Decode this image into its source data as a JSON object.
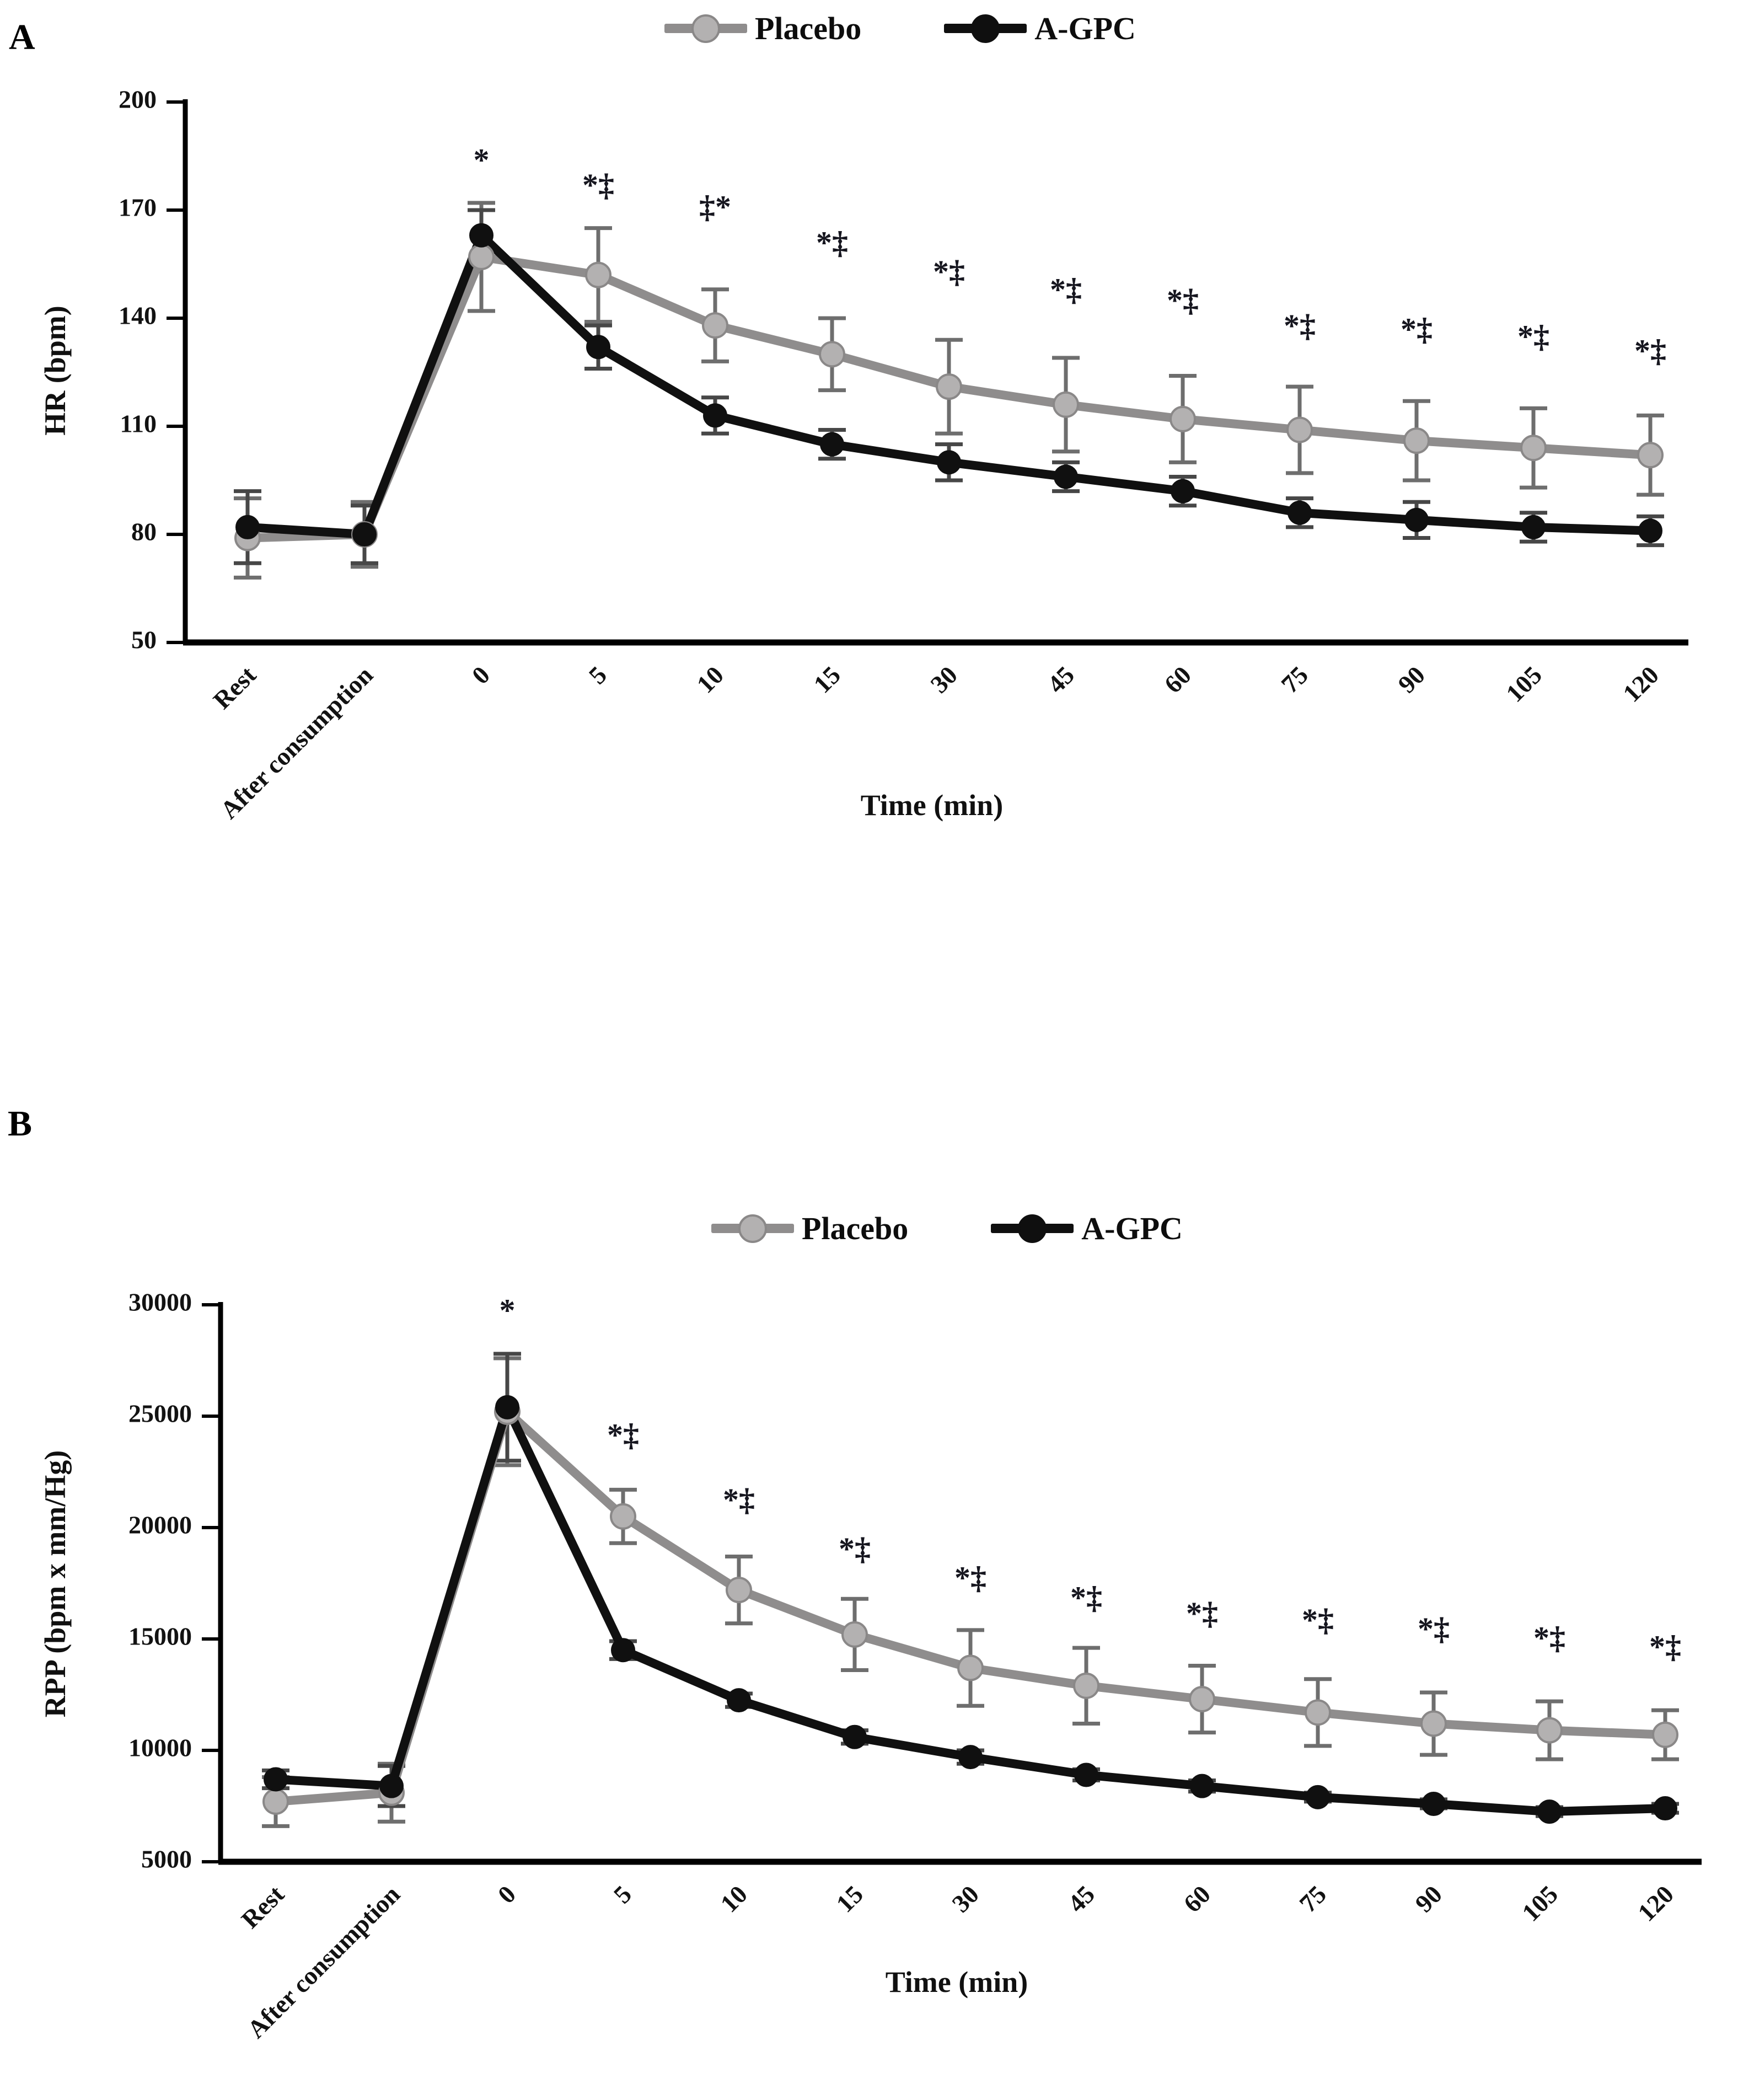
{
  "chart_data": [
    {
      "type": "line",
      "panel_label": "A",
      "xlabel": "Time (min)",
      "ylabel": "HR (bpm)",
      "categories": [
        "Rest",
        "After consumption",
        "0",
        "5",
        "10",
        "15",
        "30",
        "45",
        "60",
        "75",
        "90",
        "105",
        "120"
      ],
      "ylim": [
        50,
        200
      ],
      "yticks": [
        50,
        80,
        110,
        140,
        170,
        200
      ],
      "grid": false,
      "legend_position": "top-center",
      "series": [
        {
          "name": "Placebo",
          "color": "#8f8d8d",
          "marker_fill": "#b3b1b1",
          "marker_stroke": "#8a8888",
          "error_color": "#6e6e6e",
          "values": [
            79,
            80,
            157,
            152,
            138,
            130,
            121,
            116,
            112,
            109,
            106,
            104,
            102
          ],
          "errors": [
            11,
            9,
            15,
            13,
            10,
            10,
            13,
            13,
            12,
            12,
            11,
            11,
            11
          ]
        },
        {
          "name": "A-GPC",
          "color": "#101010",
          "marker_fill": "#101010",
          "marker_stroke": "#101010",
          "error_color": "#474747",
          "values": [
            82,
            80,
            163,
            132,
            113,
            105,
            100,
            96,
            92,
            86,
            84,
            82,
            81
          ],
          "errors": [
            10,
            8,
            7,
            6,
            5,
            4,
            5,
            4,
            4,
            4,
            5,
            4,
            4
          ]
        }
      ],
      "annotations": [
        {
          "category_index": 2,
          "text": "*",
          "y": 183
        },
        {
          "category_index": 3,
          "text": "*‡",
          "y": 176
        },
        {
          "category_index": 4,
          "text": "‡*",
          "y": 170
        },
        {
          "category_index": 5,
          "text": "*‡",
          "y": 160
        },
        {
          "category_index": 6,
          "text": "*‡",
          "y": 152
        },
        {
          "category_index": 7,
          "text": "*‡",
          "y": 147
        },
        {
          "category_index": 8,
          "text": "*‡",
          "y": 144
        },
        {
          "category_index": 9,
          "text": "*‡",
          "y": 137
        },
        {
          "category_index": 10,
          "text": "*‡",
          "y": 136
        },
        {
          "category_index": 11,
          "text": "*‡",
          "y": 134
        },
        {
          "category_index": 12,
          "text": "*‡",
          "y": 130
        }
      ]
    },
    {
      "type": "line",
      "panel_label": "B",
      "xlabel": "Time (min)",
      "ylabel": "RPP (bpm x mm/Hg)",
      "categories": [
        "Rest",
        "After consumption",
        "0",
        "5",
        "10",
        "15",
        "30",
        "45",
        "60",
        "75",
        "90",
        "105",
        "120"
      ],
      "ylim": [
        5000,
        30000
      ],
      "yticks": [
        5000,
        10000,
        15000,
        20000,
        25000,
        30000
      ],
      "grid": false,
      "legend_position": "top-center",
      "series": [
        {
          "name": "Placebo",
          "color": "#8f8d8d",
          "marker_fill": "#b3b1b1",
          "marker_stroke": "#8a8888",
          "error_color": "#6e6e6e",
          "values": [
            7700,
            8100,
            25200,
            20500,
            17200,
            15200,
            13700,
            12900,
            12300,
            11700,
            11200,
            10900,
            10700
          ],
          "errors": [
            1100,
            1300,
            2400,
            1200,
            1500,
            1600,
            1700,
            1700,
            1500,
            1500,
            1400,
            1300,
            1100
          ]
        },
        {
          "name": "A-GPC",
          "color": "#101010",
          "marker_fill": "#101010",
          "marker_stroke": "#101010",
          "error_color": "#474747",
          "values": [
            8700,
            8400,
            25400,
            14500,
            12250,
            10600,
            9700,
            8900,
            8400,
            7900,
            7600,
            7250,
            7400
          ],
          "errors": [
            400,
            900,
            2400,
            400,
            300,
            300,
            300,
            250,
            250,
            200,
            200,
            200,
            200
          ]
        }
      ],
      "annotations": [
        {
          "category_index": 2,
          "text": "*",
          "y": 29600
        },
        {
          "category_index": 3,
          "text": "*‡",
          "y": 24000
        },
        {
          "category_index": 4,
          "text": "*‡",
          "y": 21100
        },
        {
          "category_index": 5,
          "text": "*‡",
          "y": 18900
        },
        {
          "category_index": 6,
          "text": "*‡",
          "y": 17600
        },
        {
          "category_index": 7,
          "text": "*‡",
          "y": 16700
        },
        {
          "category_index": 8,
          "text": "*‡",
          "y": 16000
        },
        {
          "category_index": 9,
          "text": "*‡",
          "y": 15700
        },
        {
          "category_index": 10,
          "text": "*‡",
          "y": 15300
        },
        {
          "category_index": 11,
          "text": "*‡",
          "y": 14900
        },
        {
          "category_index": 12,
          "text": "*‡",
          "y": 14500
        }
      ]
    }
  ]
}
